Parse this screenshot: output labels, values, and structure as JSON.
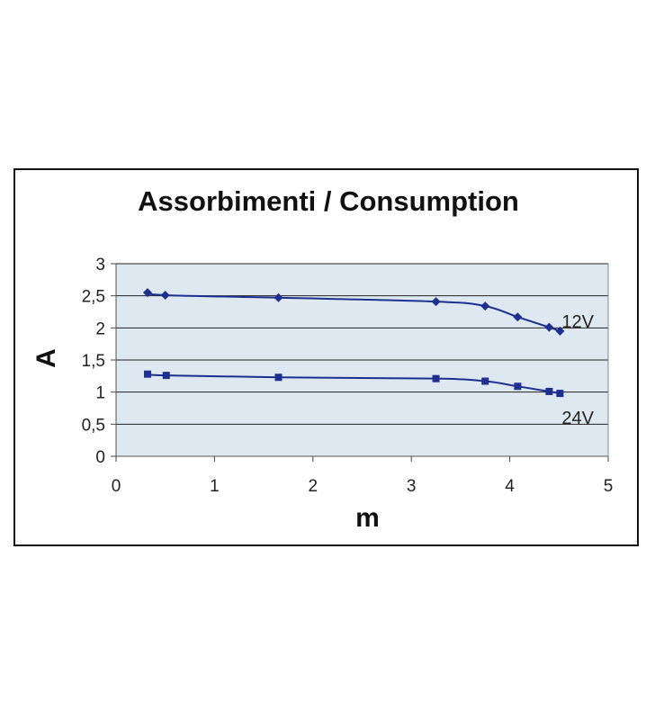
{
  "chart_data": {
    "type": "line",
    "title": "Assorbimenti / Consumption",
    "xlabel": "m",
    "ylabel": "A",
    "xlim": [
      0,
      5
    ],
    "ylim": [
      0,
      3
    ],
    "x_ticks": [
      "0",
      "1",
      "2",
      "3",
      "4",
      "5"
    ],
    "y_ticks": [
      "0",
      "0,5",
      "1",
      "1,5",
      "2",
      "2,5",
      "3"
    ],
    "grid": "horizontal",
    "plot_background": "#dde8f1",
    "series": [
      {
        "name": "12V",
        "marker": "diamond",
        "color": "#1f2f8f",
        "points": [
          {
            "x": 0.32,
            "y": 2.55
          },
          {
            "x": 0.5,
            "y": 2.51
          },
          {
            "x": 1.65,
            "y": 2.47
          },
          {
            "x": 3.25,
            "y": 2.41
          },
          {
            "x": 3.75,
            "y": 2.34
          },
          {
            "x": 4.08,
            "y": 2.17
          },
          {
            "x": 4.4,
            "y": 2.01
          },
          {
            "x": 4.51,
            "y": 1.95
          }
        ]
      },
      {
        "name": "24V",
        "marker": "square",
        "color": "#1f2f8f",
        "points": [
          {
            "x": 0.32,
            "y": 1.28
          },
          {
            "x": 0.51,
            "y": 1.26
          },
          {
            "x": 1.65,
            "y": 1.23
          },
          {
            "x": 3.25,
            "y": 1.21
          },
          {
            "x": 3.75,
            "y": 1.17
          },
          {
            "x": 4.08,
            "y": 1.09
          },
          {
            "x": 4.4,
            "y": 1.01
          },
          {
            "x": 4.51,
            "y": 0.98
          }
        ]
      }
    ]
  }
}
